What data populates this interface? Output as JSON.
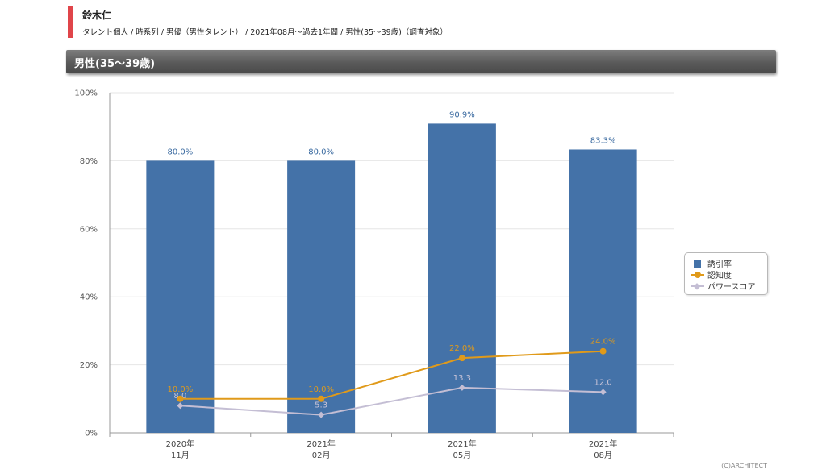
{
  "header": {
    "title": "鈴木仁",
    "subtitle": "タレント個人 / 時系列 / 男優（男性タレント） / 2021年08月〜過去1年間 / 男性(35〜39歳)（調査対象）"
  },
  "panel": {
    "title": "男性(35〜39歳)"
  },
  "copyright": "(C)ARCHITECT",
  "colors": {
    "bar": "#4472a8",
    "recognition": "#e09a1a",
    "power": "#c4bed4",
    "accent": "#e0454a"
  },
  "chart_data": {
    "type": "bar",
    "categories": [
      [
        "2020年",
        "11月"
      ],
      [
        "2021年",
        "02月"
      ],
      [
        "2021年",
        "05月"
      ],
      [
        "2021年",
        "08月"
      ]
    ],
    "ylim": [
      0,
      100
    ],
    "yticks": [
      "0%",
      "20%",
      "40%",
      "60%",
      "80%",
      "100%"
    ],
    "grid": true,
    "legend_position": "right",
    "series": [
      {
        "name": "誘引率",
        "type": "bar",
        "values": [
          80.0,
          80.0,
          90.9,
          83.3
        ],
        "labels": [
          "80.0%",
          "80.0%",
          "90.9%",
          "83.3%"
        ]
      },
      {
        "name": "認知度",
        "type": "line",
        "values": [
          10.0,
          10.0,
          22.0,
          24.0
        ],
        "labels": [
          "10.0%",
          "10.0%",
          "22.0%",
          "24.0%"
        ]
      },
      {
        "name": "パワースコア",
        "type": "line",
        "values": [
          8.0,
          5.3,
          13.3,
          12.0
        ],
        "labels": [
          "8.0",
          "5.3",
          "13.3",
          "12.0"
        ]
      }
    ]
  }
}
